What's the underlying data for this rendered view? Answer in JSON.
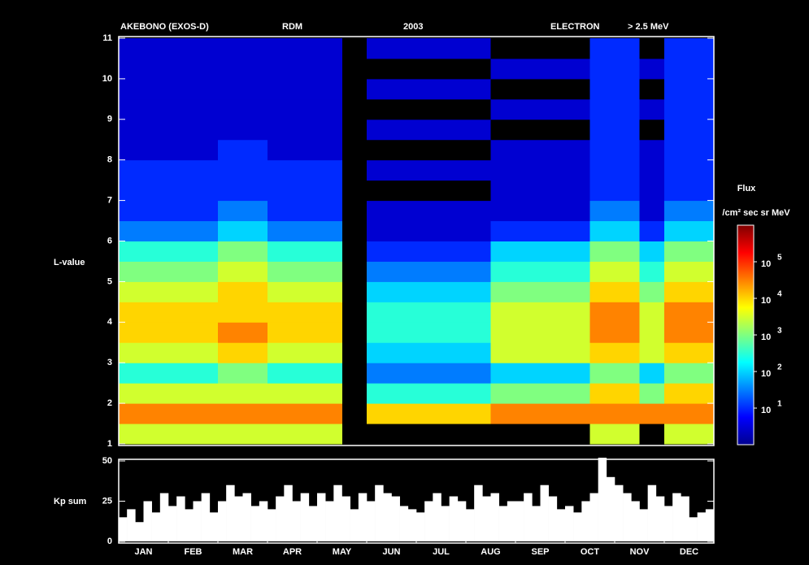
{
  "chart_data": [
    {
      "type": "heatmap",
      "header": [
        "AKEBONO (EXOS-D)",
        "RDM",
        "2003",
        "ELECTRON",
        "> 2.5 MeV"
      ],
      "ylabel": "L-value",
      "ylim": [
        1,
        11
      ],
      "yticks": [
        1,
        2,
        3,
        4,
        5,
        6,
        7,
        8,
        9,
        10,
        11
      ],
      "colorbar_title": "Flux",
      "colorbar_unit": "/cm² sec sr MeV",
      "zlim": [
        1,
        1000000
      ],
      "zscale": "log",
      "zticks": [
        {
          "value": 10,
          "label": "10",
          "exponent": "1"
        },
        {
          "value": 100,
          "label": "10",
          "exponent": "2"
        },
        {
          "value": 1000,
          "label": "10",
          "exponent": "3"
        },
        {
          "value": 10000,
          "label": "10",
          "exponent": "4"
        },
        {
          "value": 100000,
          "label": "10",
          "exponent": "5"
        }
      ],
      "z": [
        [
          [
            3000,
            30000,
            3000,
            300,
            3000,
            10000,
            10000,
            3000,
            1000,
            300,
            30,
            10,
            10,
            10,
            3,
            3,
            3,
            3,
            3,
            3
          ],
          [
            3000,
            30000,
            3000,
            300,
            3000,
            10000,
            10000,
            3000,
            1000,
            300,
            30,
            10,
            10,
            10,
            3,
            3,
            3,
            3,
            3,
            3
          ]
        ],
        [
          [
            3000,
            30000,
            3000,
            300,
            3000,
            10000,
            10000,
            3000,
            1000,
            300,
            30,
            10,
            10,
            10,
            3,
            3,
            3,
            3,
            3,
            3
          ],
          [
            3000,
            30000,
            3000,
            300,
            3000,
            10000,
            10000,
            3000,
            1000,
            300,
            30,
            10,
            10,
            10,
            3,
            3,
            3,
            3,
            3,
            3
          ]
        ],
        [
          [
            3000,
            30000,
            3000,
            1000,
            10000,
            30000,
            10000,
            10000,
            3000,
            1000,
            100,
            30,
            10,
            10,
            10,
            3,
            3,
            3,
            3,
            3
          ],
          [
            3000,
            30000,
            3000,
            1000,
            10000,
            30000,
            10000,
            10000,
            3000,
            1000,
            100,
            30,
            10,
            10,
            10,
            3,
            3,
            3,
            3,
            3
          ]
        ],
        [
          [
            3000,
            30000,
            3000,
            300,
            3000,
            10000,
            10000,
            3000,
            1000,
            300,
            30,
            10,
            10,
            10,
            3,
            3,
            3,
            3,
            3,
            3
          ],
          [
            3000,
            30000,
            3000,
            300,
            3000,
            10000,
            10000,
            3000,
            1000,
            300,
            30,
            10,
            10,
            10,
            3,
            3,
            3,
            3,
            3,
            3
          ]
        ],
        [
          [
            3000,
            30000,
            3000,
            300,
            3000,
            10000,
            10000,
            3000,
            1000,
            300,
            30,
            10,
            10,
            10,
            3,
            3,
            3,
            3,
            3,
            3
          ],
          null
        ],
        [
          [
            0,
            10000,
            300,
            30,
            100,
            300,
            300,
            100,
            30,
            10,
            3,
            3,
            0,
            3,
            0,
            3,
            0,
            3,
            0,
            3
          ],
          [
            0,
            10000,
            300,
            30,
            100,
            300,
            300,
            100,
            30,
            10,
            3,
            3,
            0,
            3,
            0,
            3,
            0,
            3,
            0,
            3
          ]
        ],
        [
          [
            0,
            10000,
            300,
            30,
            100,
            300,
            300,
            100,
            30,
            10,
            3,
            3,
            0,
            3,
            0,
            3,
            0,
            3,
            0,
            3
          ],
          [
            0,
            10000,
            300,
            30,
            100,
            300,
            300,
            100,
            30,
            10,
            3,
            3,
            0,
            3,
            0,
            3,
            0,
            3,
            0,
            3
          ]
        ],
        [
          [
            0,
            10000,
            300,
            30,
            100,
            300,
            300,
            100,
            30,
            10,
            3,
            3,
            0,
            3,
            0,
            3,
            0,
            3,
            0,
            3
          ],
          [
            0,
            30000,
            1000,
            100,
            3000,
            3000,
            3000,
            1000,
            300,
            100,
            10,
            3,
            3,
            3,
            3,
            0,
            3,
            0,
            3,
            0
          ]
        ],
        [
          [
            0,
            30000,
            1000,
            100,
            3000,
            3000,
            3000,
            1000,
            300,
            100,
            10,
            3,
            3,
            3,
            3,
            0,
            3,
            0,
            3,
            0
          ],
          [
            0,
            30000,
            1000,
            100,
            3000,
            3000,
            3000,
            1000,
            300,
            100,
            10,
            3,
            3,
            3,
            3,
            0,
            3,
            0,
            3,
            0
          ]
        ],
        [
          [
            0,
            30000,
            1000,
            100,
            3000,
            3000,
            3000,
            1000,
            300,
            100,
            10,
            3,
            3,
            3,
            3,
            0,
            3,
            0,
            3,
            0
          ],
          [
            3000,
            30000,
            10000,
            1000,
            10000,
            30000,
            30000,
            10000,
            3000,
            1000,
            100,
            30,
            10,
            10,
            10,
            10,
            10,
            10,
            10,
            10
          ]
        ],
        [
          [
            3000,
            30000,
            10000,
            1000,
            10000,
            30000,
            30000,
            10000,
            3000,
            1000,
            100,
            30,
            10,
            10,
            10,
            10,
            10,
            10,
            10,
            10
          ],
          [
            0,
            30000,
            1000,
            100,
            3000,
            3000,
            3000,
            1000,
            300,
            100,
            10,
            3,
            3,
            3,
            3,
            0,
            3,
            0,
            3,
            0
          ]
        ],
        [
          [
            3000,
            30000,
            10000,
            1000,
            10000,
            30000,
            30000,
            10000,
            3000,
            1000,
            100,
            30,
            10,
            10,
            10,
            10,
            10,
            10,
            10,
            10
          ],
          [
            3000,
            30000,
            10000,
            1000,
            10000,
            30000,
            30000,
            10000,
            3000,
            1000,
            100,
            30,
            10,
            10,
            10,
            10,
            10,
            10,
            10,
            10
          ]
        ]
      ]
    },
    {
      "type": "bar",
      "ylabel": "Kp sum",
      "ylim": [
        0,
        50
      ],
      "yticks": [
        0,
        25,
        50
      ],
      "color": "#ffffff",
      "categories": [
        "JAN",
        "FEB",
        "MAR",
        "APR",
        "MAY",
        "JUN",
        "JUL",
        "AUG",
        "SEP",
        "OCT",
        "NOV",
        "DEC"
      ],
      "values": [
        [
          15,
          20,
          12,
          25,
          18,
          30
        ],
        [
          22,
          28,
          20,
          25,
          30,
          18
        ],
        [
          25,
          35,
          28,
          30,
          22,
          25
        ],
        [
          20,
          28,
          35,
          25,
          30,
          22
        ],
        [
          30,
          25,
          35,
          28,
          20,
          30
        ],
        [
          25,
          35,
          30,
          28,
          22,
          20
        ],
        [
          18,
          25,
          30,
          22,
          28,
          25
        ],
        [
          20,
          35,
          28,
          30,
          22,
          25
        ],
        [
          25,
          30,
          22,
          35,
          28,
          20
        ],
        [
          22,
          18,
          25,
          30,
          52,
          40
        ],
        [
          35,
          30,
          25,
          20,
          35,
          28
        ],
        [
          22,
          30,
          28,
          15,
          18,
          20
        ]
      ]
    }
  ]
}
